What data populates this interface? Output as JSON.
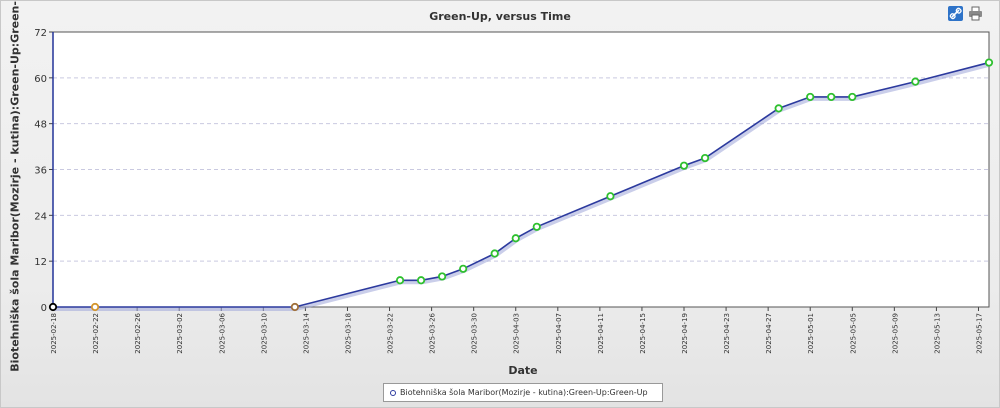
{
  "chart_data": {
    "type": "line",
    "title": "Green-Up, versus Time",
    "xlabel": "Date",
    "ylabel": "Biotehniška šola Maribor(Mozirje - kutina):Green-Up:Green-Up",
    "ylim": [
      0,
      72
    ],
    "yticks": [
      0,
      12,
      24,
      36,
      48,
      60,
      72
    ],
    "xlim": [
      "2025-02-18",
      "2025-05-18"
    ],
    "xticks": [
      "2025-02-18",
      "2025-02-22",
      "2025-02-26",
      "2025-03-02",
      "2025-03-06",
      "2025-03-10",
      "2025-03-14",
      "2025-03-18",
      "2025-03-22",
      "2025-03-26",
      "2025-03-30",
      "2025-04-03",
      "2025-04-07",
      "2025-04-11",
      "2025-04-15",
      "2025-04-19",
      "2025-04-23",
      "2025-04-27",
      "2025-05-01",
      "2025-05-05",
      "2025-05-09",
      "2025-05-13",
      "2025-05-17"
    ],
    "grid": true,
    "legend_position": "bottom-center",
    "series": [
      {
        "name": "Biotehniška šola Maribor(Mozirje - kutina):Green-Up:Green-Up",
        "color": "#2c3a9e",
        "x": [
          "2025-02-18",
          "2025-02-22",
          "2025-03-13",
          "2025-03-23",
          "2025-03-25",
          "2025-03-27",
          "2025-03-29",
          "2025-04-01",
          "2025-04-03",
          "2025-04-05",
          "2025-04-12",
          "2025-04-19",
          "2025-04-21",
          "2025-04-28",
          "2025-05-01",
          "2025-05-03",
          "2025-05-05",
          "2025-05-11",
          "2025-05-18"
        ],
        "y": [
          0,
          0,
          0,
          7,
          7,
          8,
          10,
          14,
          18,
          21,
          29,
          37,
          39,
          52,
          55,
          55,
          55,
          59,
          64
        ],
        "marker_colors": [
          "#000000",
          "#d4962e",
          "#a0703a",
          "#2ec02e",
          "#2ec02e",
          "#2ec02e",
          "#2ec02e",
          "#2ec02e",
          "#2ec02e",
          "#2ec02e",
          "#2ec02e",
          "#2ec02e",
          "#2ec02e",
          "#2ec02e",
          "#2ec02e",
          "#2ec02e",
          "#2ec02e",
          "#2ec02e",
          "#2ec02e"
        ]
      }
    ]
  },
  "toolbar": {
    "link_icon": "link-icon",
    "print_icon": "printer-icon"
  }
}
